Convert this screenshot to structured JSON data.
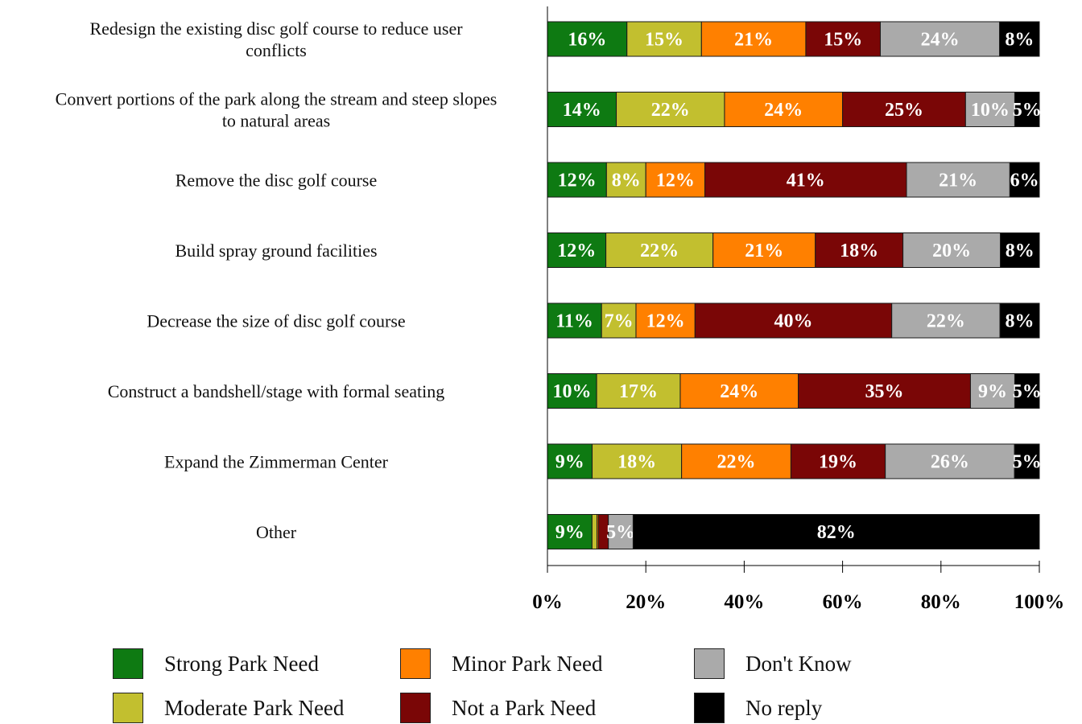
{
  "chart_data": {
    "type": "bar",
    "orientation": "horizontal",
    "stacked": true,
    "categories": [
      "Redesign the existing disc golf course to reduce user conflicts",
      "Convert portions of the park along the stream and steep slopes to natural areas",
      "Remove the disc golf course",
      "Build spray ground facilities",
      "Decrease the size of disc golf course",
      "Construct a bandshell/stage with formal seating",
      "Expand the Zimmerman Center",
      "Other"
    ],
    "series": [
      {
        "name": "Strong Park Need",
        "color": "#0e7a12",
        "values": [
          16,
          14,
          12,
          12,
          11,
          10,
          9,
          9
        ]
      },
      {
        "name": "Moderate Park Need",
        "color": "#c2bf2f",
        "values": [
          15,
          22,
          8,
          22,
          7,
          17,
          18,
          1
        ]
      },
      {
        "name": "Minor Park Need",
        "color": "#ff8000",
        "values": [
          21,
          24,
          12,
          21,
          12,
          24,
          22,
          0.3
        ]
      },
      {
        "name": "Not a Park Need",
        "color": "#7a0606",
        "values": [
          15,
          25,
          41,
          18,
          40,
          35,
          19,
          2
        ]
      },
      {
        "name": "Don't Know",
        "color": "#aaaaaa",
        "values": [
          24,
          10,
          21,
          20,
          22,
          9,
          26,
          5
        ]
      },
      {
        "name": "No reply",
        "color": "#000000",
        "values": [
          8,
          5,
          6,
          8,
          8,
          5,
          5,
          82
        ]
      }
    ],
    "value_labels": [
      [
        "16%",
        "15%",
        "21%",
        "15%",
        "24%",
        "8%"
      ],
      [
        "14%",
        "22%",
        "24%",
        "25%",
        "10%",
        "5%"
      ],
      [
        "12%",
        "8%",
        "12%",
        "41%",
        "21%",
        "6%"
      ],
      [
        "12%",
        "22%",
        "21%",
        "18%",
        "20%",
        "8%"
      ],
      [
        "11%",
        "7%",
        "12%",
        "40%",
        "22%",
        "8%"
      ],
      [
        "10%",
        "17%",
        "24%",
        "35%",
        "9%",
        "5%"
      ],
      [
        "9%",
        "18%",
        "22%",
        "19%",
        "26%",
        "5%"
      ],
      [
        "9%",
        "",
        "",
        "",
        "5%",
        "82%"
      ]
    ],
    "xticks": [
      "0%",
      "20%",
      "40%",
      "60%",
      "80%",
      "100%"
    ],
    "xlim": [
      0,
      100
    ],
    "legend_position": "bottom",
    "legend_columns": 3
  }
}
